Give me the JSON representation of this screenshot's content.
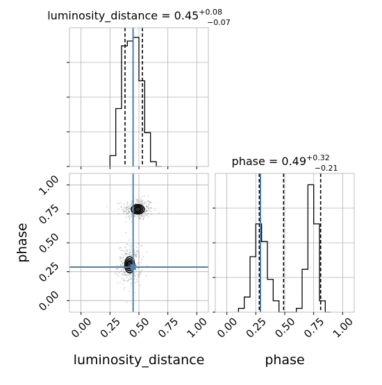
{
  "chart_data": [
    {
      "type": "histogram",
      "panel": "marginal",
      "parameter": "luminosity_distance",
      "title_main": "luminosity_distance = 0.45",
      "title_plus": "+0.08",
      "title_minus": "−0.07",
      "xlim": [
        -0.1,
        1.1
      ],
      "bin_edges": [
        0.25,
        0.3,
        0.35,
        0.4,
        0.45,
        0.5,
        0.55,
        0.6,
        0.65,
        0.7
      ],
      "counts": [
        0.09,
        0.48,
        1.0,
        1.04,
        1.07,
        0.71,
        0.28,
        0.04,
        0.0
      ],
      "ymax": 1.15,
      "quantile_lines": [
        0.38,
        0.45,
        0.53
      ],
      "truth": 0.45,
      "grid": true
    },
    {
      "type": "histogram",
      "panel": "marginal",
      "parameter": "phase",
      "title_main": "phase = 0.49",
      "title_plus": "+0.32",
      "title_minus": "−0.21",
      "xlim": [
        -0.1,
        1.1
      ],
      "xticks": [
        "0.00",
        "0.25",
        "0.50",
        "0.75",
        "1.00"
      ],
      "xtick_values": [
        0,
        0.25,
        0.5,
        0.75,
        1.0
      ],
      "xlabel": "phase",
      "bin_edges": [
        0.1,
        0.15,
        0.2,
        0.25,
        0.3,
        0.35,
        0.4,
        0.45,
        0.5,
        0.55,
        0.6,
        0.65,
        0.7,
        0.75,
        0.8,
        0.85,
        0.9
      ],
      "counts": [
        0.03,
        0.12,
        0.44,
        0.7,
        0.56,
        0.26,
        0.09,
        0.0,
        0.0,
        0.0,
        0.03,
        0.34,
        1.01,
        0.7,
        0.09,
        0.0
      ],
      "ymax": 1.1,
      "quantile_lines": [
        0.28,
        0.49,
        0.81
      ],
      "truth": 0.29,
      "grid": true
    },
    {
      "type": "contour",
      "panel": "2d",
      "x_parameter": "luminosity_distance",
      "y_parameter": "phase",
      "xlim": [
        -0.1,
        1.1
      ],
      "ylim": [
        -0.1,
        1.1
      ],
      "xticks": [
        "0.00",
        "0.25",
        "0.50",
        "0.75",
        "1.00"
      ],
      "xtick_values": [
        0,
        0.25,
        0.5,
        0.75,
        1.0
      ],
      "yticks": [
        "0.00",
        "0.25",
        "0.50",
        "0.75",
        "1.00"
      ],
      "ytick_values": [
        0,
        0.25,
        0.5,
        0.75,
        1.0
      ],
      "xlabel": "luminosity_distance",
      "ylabel": "phase",
      "modes": [
        {
          "x": 0.49,
          "y": 0.79,
          "sx": 0.055,
          "sy": 0.04,
          "levels": [
            1.0,
            1.55,
            2.05
          ]
        },
        {
          "x": 0.42,
          "y": 0.31,
          "sx": 0.042,
          "sy": 0.07,
          "levels": [
            1.0,
            1.5,
            2.0
          ]
        }
      ],
      "truth": {
        "x": 0.45,
        "y": 0.29
      },
      "grid": true
    }
  ],
  "colors": {
    "truth": "#4c7fb0",
    "hist": "#000000",
    "grid": "#b0b0b0",
    "scatter": "#7f7f7f",
    "contour_fill_outer": "#d9d9d9",
    "contour_fill_mid": "#8c8c8c",
    "contour_fill_inner": "#1a1a1a"
  }
}
